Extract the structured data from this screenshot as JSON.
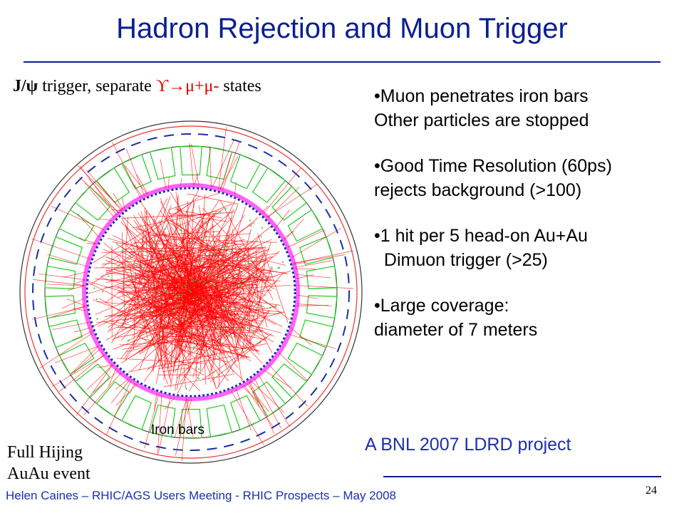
{
  "slide": {
    "title": "Hadron Rejection and Muon Trigger",
    "subtitle": {
      "jpsi": "J/ψ",
      "trigger_text": " trigger,  separate ",
      "upsilon_decay": "ϒ→μ+μ-",
      "states": " states"
    },
    "bullets": [
      {
        "line1": "•Muon penetrates iron bars",
        "line2": "Other particles are stopped"
      },
      {
        "line1": "•Good Time Resolution (60ps)",
        "line2": "rejects background (>100)"
      },
      {
        "line1": "•1 hit per 5 head-on Au+Au",
        "line2": "  Dimuon trigger (>25)"
      },
      {
        "line1": "•Large coverage:",
        "line2": "diameter of 7 meters"
      }
    ],
    "project_note": "A BNL 2007 LDRD project",
    "image_caption": {
      "line1": "Full Hijing",
      "line2": "AuAu event"
    },
    "iron_bars_label": "Iron bars",
    "footer": "Helen Caines – RHIC/AGS Users Meeting -  RHIC Prospects – May 2008",
    "page_number": "24"
  },
  "colors": {
    "title": "#0a1f8f",
    "tracks": "#ff0000",
    "iron_bars": "#22cc22",
    "detector_blue": "#1a2ea8",
    "inner_ring": "#ff44ff",
    "footer": "#1b2fb0"
  }
}
